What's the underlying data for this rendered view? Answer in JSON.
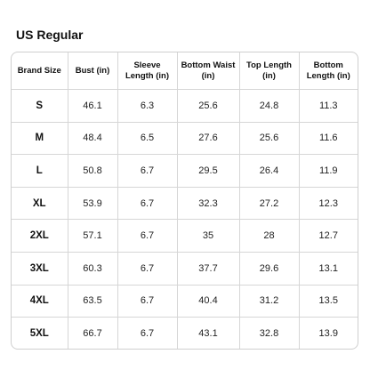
{
  "header": {
    "title": "US Regular"
  },
  "table": {
    "columns": [
      "Brand Size",
      "Bust (in)",
      "Sleeve Length (in)",
      "Bottom Waist (in)",
      "Top Length (in)",
      "Bottom Length (in)"
    ],
    "rows": [
      [
        "S",
        "46.1",
        "6.3",
        "25.6",
        "24.8",
        "11.3"
      ],
      [
        "M",
        "48.4",
        "6.5",
        "27.6",
        "25.6",
        "11.6"
      ],
      [
        "L",
        "50.8",
        "6.7",
        "29.5",
        "26.4",
        "11.9"
      ],
      [
        "XL",
        "53.9",
        "6.7",
        "32.3",
        "27.2",
        "12.3"
      ],
      [
        "2XL",
        "57.1",
        "6.7",
        "35",
        "28",
        "12.7"
      ],
      [
        "3XL",
        "60.3",
        "6.7",
        "37.7",
        "29.6",
        "13.1"
      ],
      [
        "4XL",
        "63.5",
        "6.7",
        "40.4",
        "31.2",
        "13.5"
      ],
      [
        "5XL",
        "66.7",
        "6.7",
        "43.1",
        "32.8",
        "13.9"
      ]
    ]
  }
}
